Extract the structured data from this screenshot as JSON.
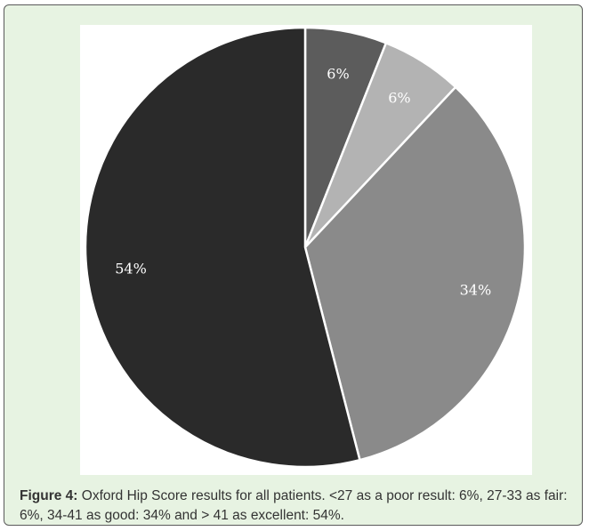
{
  "chart_data": {
    "type": "pie",
    "categories": [
      "<27 poor",
      "27-33 fair",
      "34-41 good",
      "> 41 excellent"
    ],
    "values": [
      6,
      6,
      34,
      54
    ],
    "value_labels": [
      "6%",
      "6%",
      "34%",
      "54%"
    ],
    "colors": [
      "#5c5c5c",
      "#b3b3b3",
      "#8a8a8a",
      "#2a2a2a"
    ],
    "label_colors": [
      "#ffffff",
      "#ffffff",
      "#ffffff",
      "#ffffff"
    ],
    "start_angle_deg": 0,
    "direction": "clockwise",
    "legend": "none"
  },
  "caption": {
    "lead": "Figure 4:",
    "text": " Oxford Hip Score results for all patients. <27 as a poor result: 6%, 27-33 as fair: 6%, 34-41 as good: 34% and > 41 as excellent: 54%."
  }
}
